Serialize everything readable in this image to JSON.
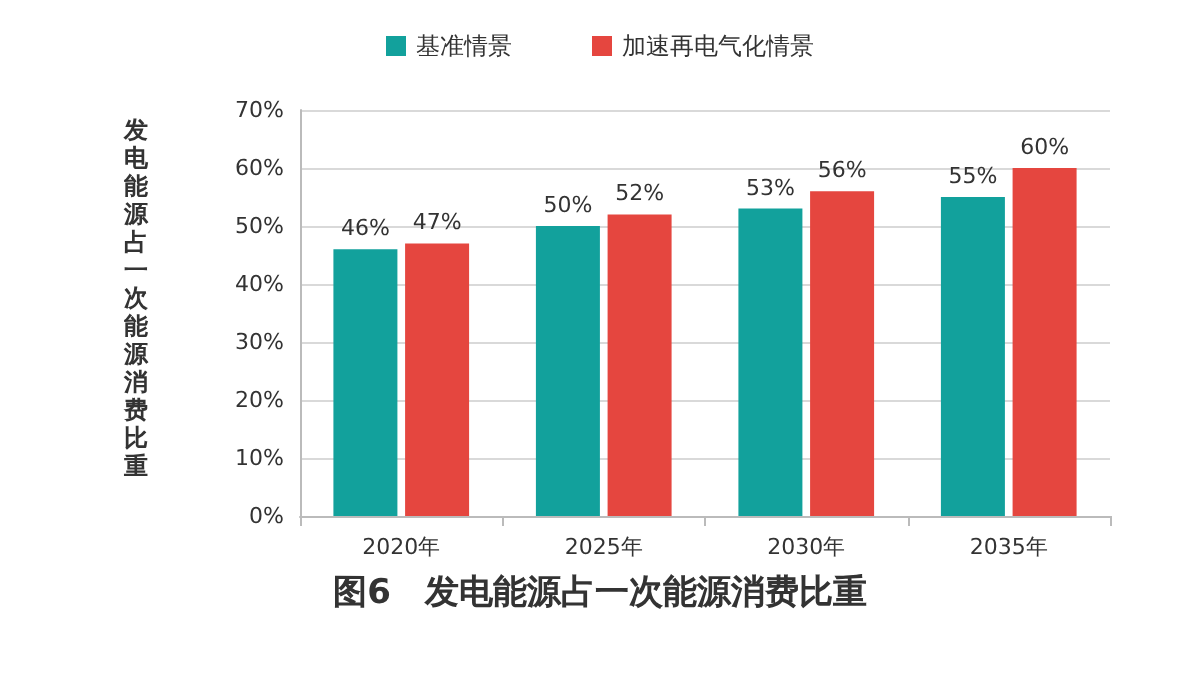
{
  "chart_data": {
    "type": "bar",
    "title": "图6　发电能源占一次能源消费比重",
    "ylabel": "发电能源占一次能源消费比重",
    "categories": [
      "2020年",
      "2025年",
      "2030年",
      "2035年"
    ],
    "series": [
      {
        "name": "基准情景",
        "color": "#12a19c",
        "values": [
          46,
          50,
          53,
          55
        ],
        "value_labels": [
          "46%",
          "50%",
          "53%",
          "55%"
        ]
      },
      {
        "name": "加速再电气化情景",
        "color": "#e5463f",
        "values": [
          47,
          52,
          56,
          60
        ],
        "value_labels": [
          "47%",
          "52%",
          "56%",
          "60%"
        ]
      }
    ],
    "ylim": [
      0,
      70
    ],
    "yticks": [
      {
        "value": 0,
        "label": "0%"
      },
      {
        "value": 10,
        "label": "10%"
      },
      {
        "value": 20,
        "label": "20%"
      },
      {
        "value": 30,
        "label": "30%"
      },
      {
        "value": 40,
        "label": "40%"
      },
      {
        "value": 50,
        "label": "50%"
      },
      {
        "value": 60,
        "label": "60%"
      },
      {
        "value": 70,
        "label": "70%"
      }
    ],
    "grid": "y",
    "legend": "top"
  }
}
